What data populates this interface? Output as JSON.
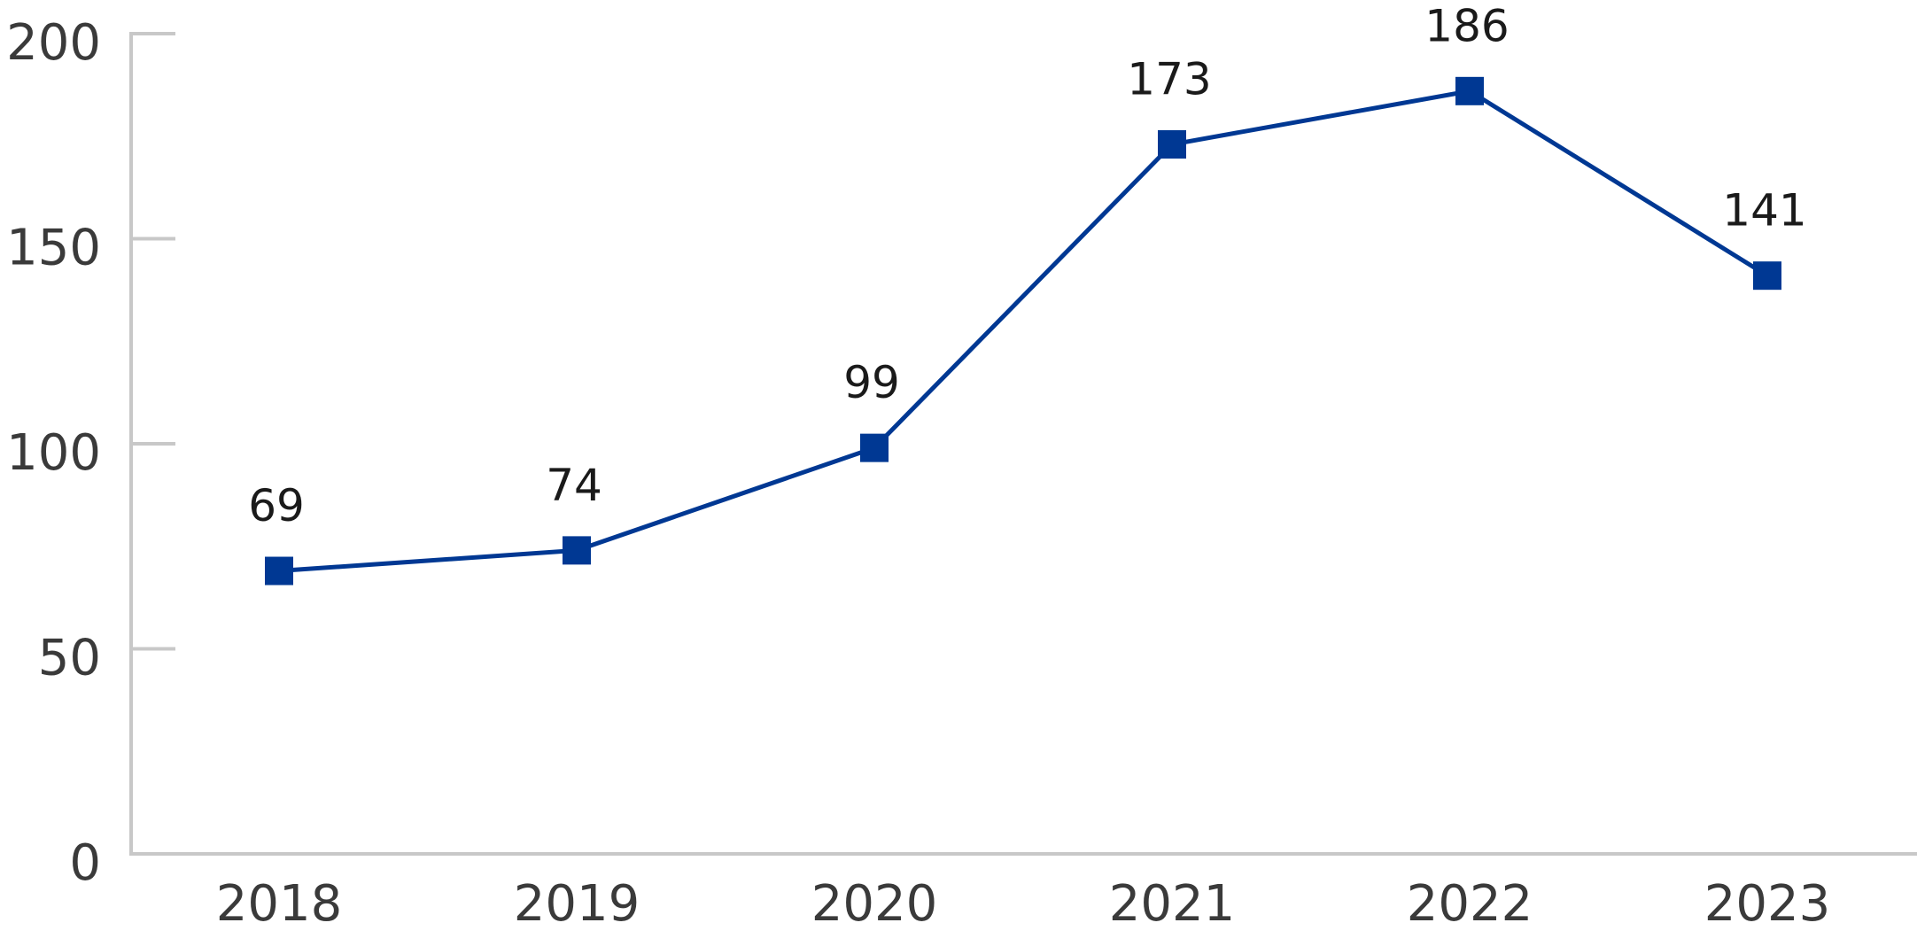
{
  "chart_data": {
    "type": "line",
    "categories": [
      "2018",
      "2019",
      "2020",
      "2021",
      "2022",
      "2023"
    ],
    "series": [
      {
        "color": "#003893",
        "values": [
          69,
          74,
          99,
          173,
          186,
          141
        ]
      }
    ],
    "ylim": [
      0,
      200
    ],
    "yticks": [
      0,
      50,
      100,
      150,
      200
    ]
  }
}
